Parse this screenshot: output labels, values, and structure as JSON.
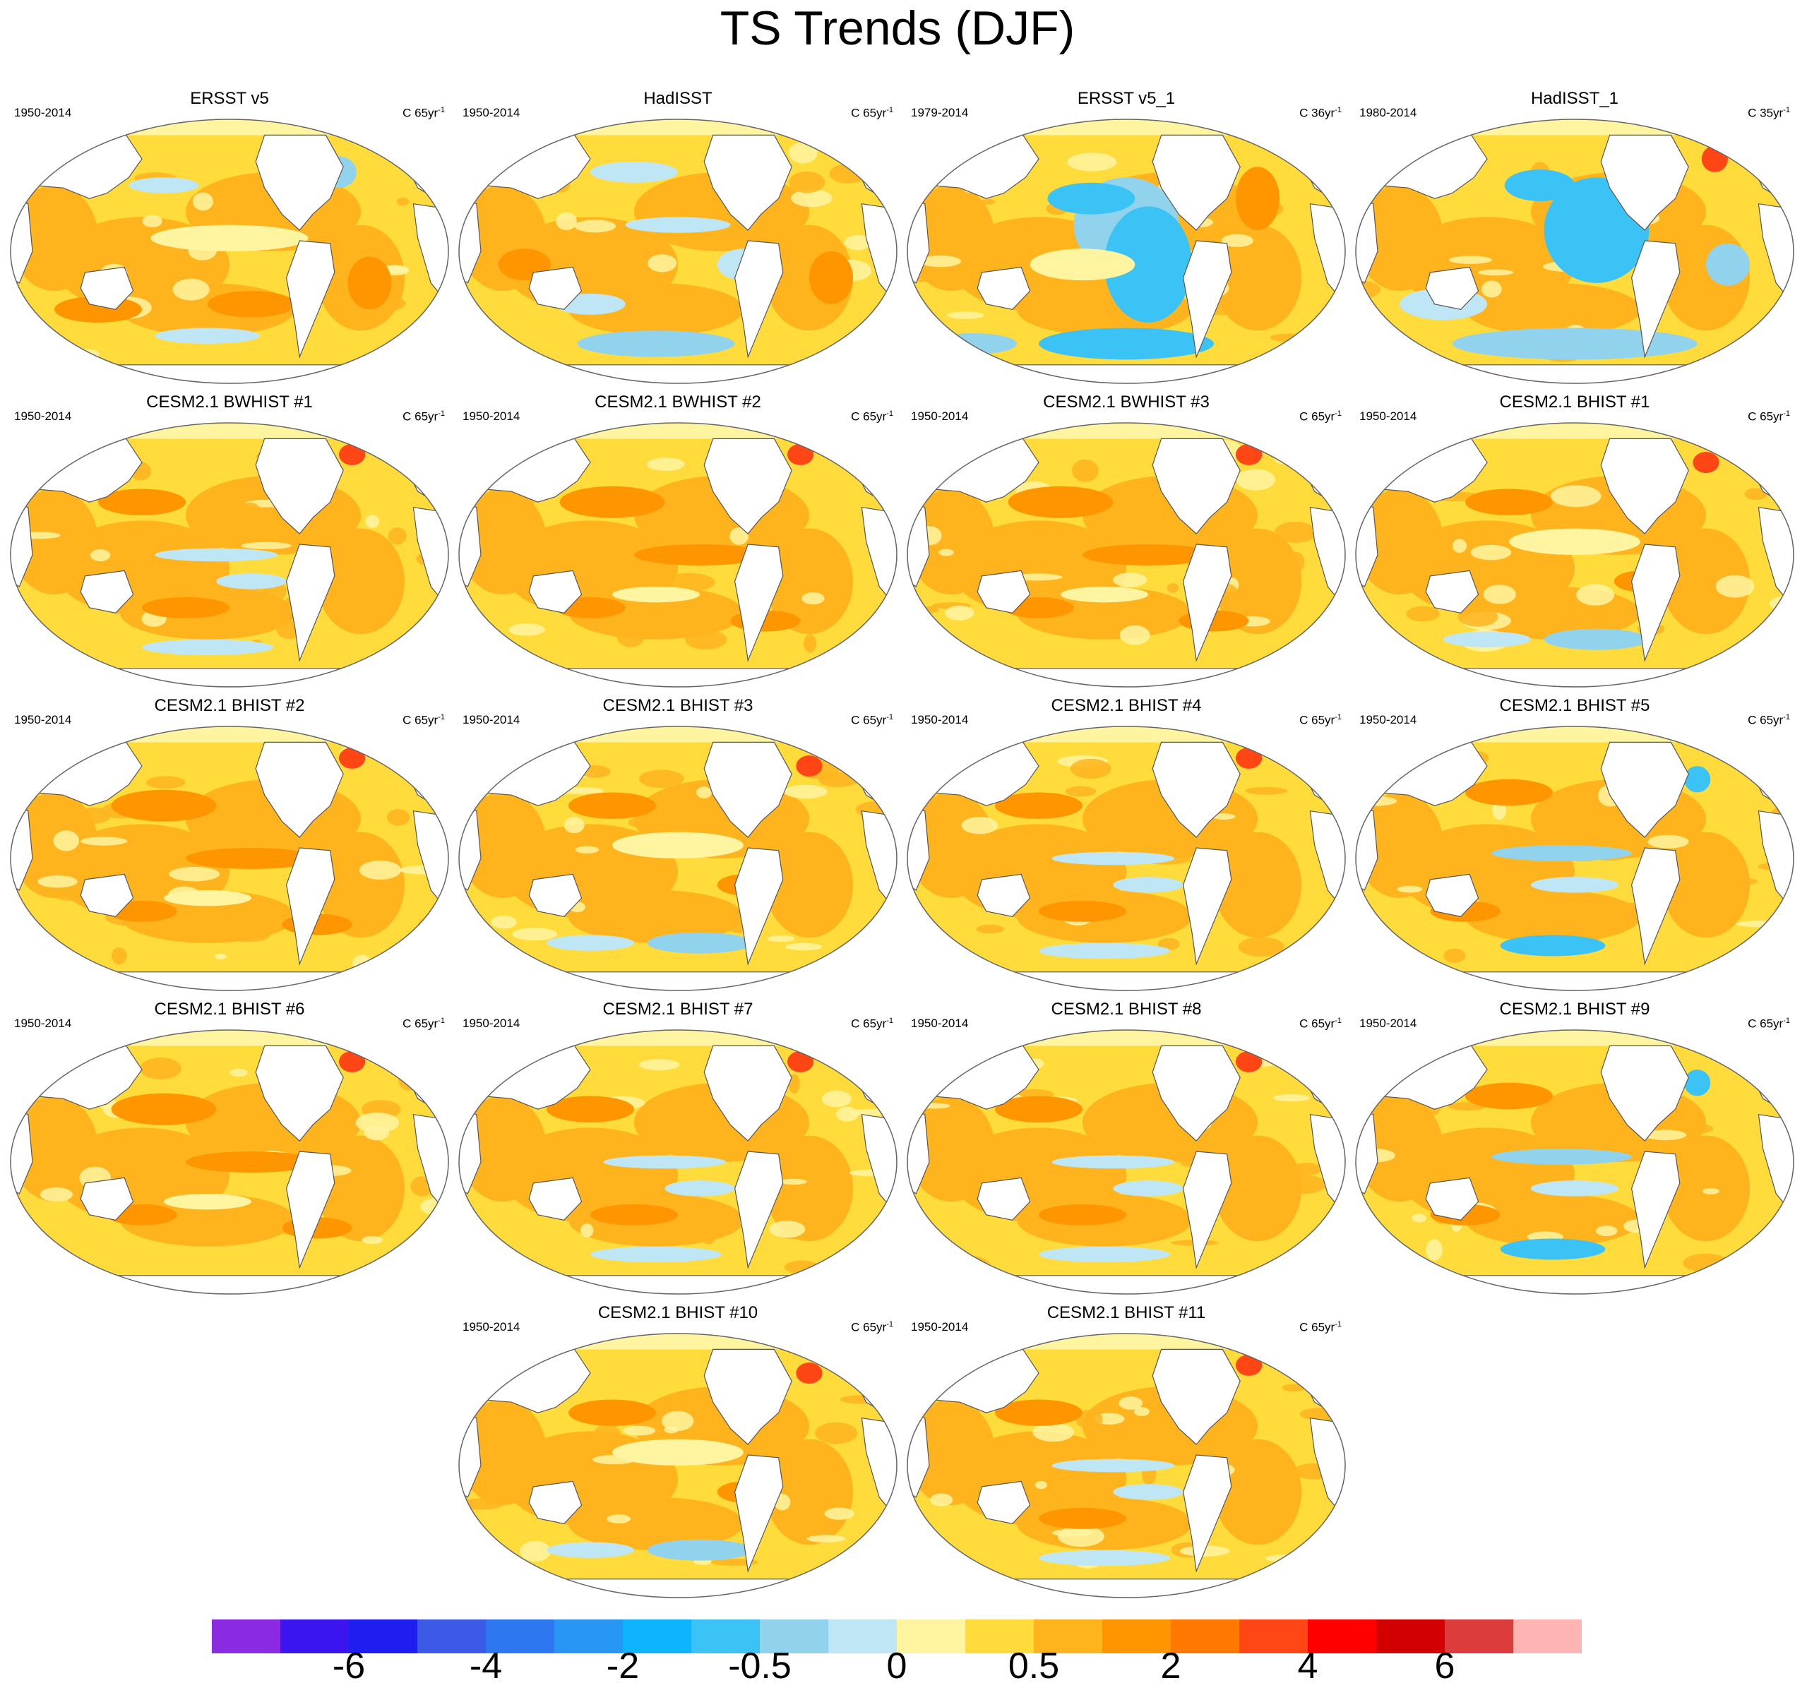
{
  "title": "TS Trends (DJF)",
  "chart_data": {
    "type": "heatmap",
    "title": "TS Trends (DJF)",
    "projection": "global map (Robinson), Pacific-centered",
    "levels": [
      "-6",
      "-4",
      "-2",
      "-0.5",
      "0",
      "0.5",
      "2",
      "4",
      "6"
    ],
    "colorbar": {
      "colors": [
        "#8a2be2",
        "#3c14f0",
        "#1e1ef0",
        "#3c5ae6",
        "#2d78f0",
        "#2896f5",
        "#0fb4ff",
        "#3cc3f5",
        "#91d2ec",
        "#bee6f5",
        "#fff5a0",
        "#ffdc3c",
        "#ffb41e",
        "#ff9600",
        "#ff7800",
        "#ff4614",
        "#ff0000",
        "#d20000",
        "#dc3c3c",
        "#ffb4b4"
      ],
      "tick_labels": [
        "-6",
        "-4",
        "-2",
        "-0.5",
        "0",
        "0.5",
        "2",
        "4",
        "6"
      ],
      "placement": "bottom"
    },
    "panels": [
      {
        "title": "ERSST v5",
        "period": "1950-2014",
        "units_prefix": "C 65yr",
        "units_exp": "-1",
        "pattern": "obs"
      },
      {
        "title": "HadISST",
        "period": "1950-2014",
        "units_prefix": "C 65yr",
        "units_exp": "-1",
        "pattern": "obs_noisy"
      },
      {
        "title": "ERSST v5_1",
        "period": "1979-2014",
        "units_prefix": "C 36yr",
        "units_exp": "-1",
        "pattern": "lanina"
      },
      {
        "title": "HadISST_1",
        "period": "1980-2014",
        "units_prefix": "C 35yr",
        "units_exp": "-1",
        "pattern": "lanina_noisy"
      },
      {
        "title": "CESM2.1 BWHIST #1",
        "period": "1950-2014",
        "units_prefix": "C 65yr",
        "units_exp": "-1",
        "pattern": "model_cool_eq"
      },
      {
        "title": "CESM2.1 BWHIST #2",
        "period": "1950-2014",
        "units_prefix": "C 65yr",
        "units_exp": "-1",
        "pattern": "model_warm"
      },
      {
        "title": "CESM2.1 BWHIST #3",
        "period": "1950-2014",
        "units_prefix": "C 65yr",
        "units_exp": "-1",
        "pattern": "model_warm"
      },
      {
        "title": "CESM2.1 BHIST #1",
        "period": "1950-2014",
        "units_prefix": "C 65yr",
        "units_exp": "-1",
        "pattern": "model_south_cool"
      },
      {
        "title": "CESM2.1 BHIST #2",
        "period": "1950-2014",
        "units_prefix": "C 65yr",
        "units_exp": "-1",
        "pattern": "model_warm"
      },
      {
        "title": "CESM2.1 BHIST #3",
        "period": "1950-2014",
        "units_prefix": "C 65yr",
        "units_exp": "-1",
        "pattern": "model_south_cool"
      },
      {
        "title": "CESM2.1 BHIST #4",
        "period": "1950-2014",
        "units_prefix": "C 65yr",
        "units_exp": "-1",
        "pattern": "model_cool_eq"
      },
      {
        "title": "CESM2.1 BHIST #5",
        "period": "1950-2014",
        "units_prefix": "C 65yr",
        "units_exp": "-1",
        "pattern": "model_cool_eq_strong"
      },
      {
        "title": "CESM2.1 BHIST #6",
        "period": "1950-2014",
        "units_prefix": "C 65yr",
        "units_exp": "-1",
        "pattern": "model_warm"
      },
      {
        "title": "CESM2.1 BHIST #7",
        "period": "1950-2014",
        "units_prefix": "C 65yr",
        "units_exp": "-1",
        "pattern": "model_cool_eq"
      },
      {
        "title": "CESM2.1 BHIST #8",
        "period": "1950-2014",
        "units_prefix": "C 65yr",
        "units_exp": "-1",
        "pattern": "model_cool_eq"
      },
      {
        "title": "CESM2.1 BHIST #9",
        "period": "1950-2014",
        "units_prefix": "C 65yr",
        "units_exp": "-1",
        "pattern": "model_cool_eq_strong"
      },
      {
        "title": "CESM2.1 BHIST #10",
        "period": "1950-2014",
        "units_prefix": "C 65yr",
        "units_exp": "-1",
        "pattern": "model_south_cool"
      },
      {
        "title": "CESM2.1 BHIST #11",
        "period": "1950-2014",
        "units_prefix": "C 65yr",
        "units_exp": "-1",
        "pattern": "model_cool_eq"
      }
    ]
  }
}
